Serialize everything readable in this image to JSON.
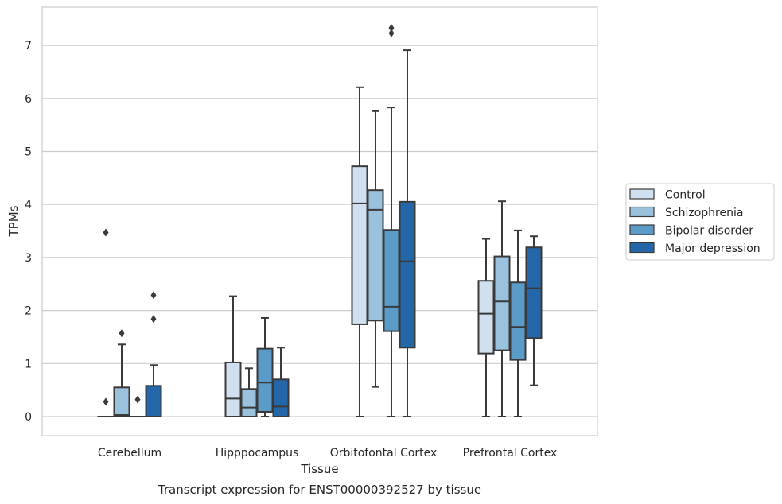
{
  "chart_data": {
    "type": "box",
    "title": "",
    "caption": "Transcript expression for ENST00000392527 by tissue",
    "xlabel": "Tissue",
    "ylabel": "TPMs",
    "ylim": [
      -0.35,
      7.7
    ],
    "yticks": [
      0,
      1,
      2,
      3,
      4,
      5,
      6,
      7
    ],
    "grid": "horizontal",
    "legend_position": "right",
    "categories": [
      "Cerebellum",
      "Hipppocampus",
      "Orbitofontal Cortex",
      "Prefrontal Cortex"
    ],
    "series": [
      {
        "name": "Control",
        "color": "#d0e0f0",
        "boxes": [
          {
            "whislo": 0,
            "q1": 0,
            "med": 0,
            "q3": 0,
            "whishi": 0,
            "fliers": [
              0.28,
              3.47
            ]
          },
          {
            "whislo": 0,
            "q1": 0,
            "med": 0.34,
            "q3": 1.02,
            "whishi": 2.27,
            "fliers": []
          },
          {
            "whislo": 0,
            "q1": 1.74,
            "med": 4.02,
            "q3": 4.72,
            "whishi": 6.21,
            "fliers": []
          },
          {
            "whislo": 0,
            "q1": 1.19,
            "med": 1.94,
            "q3": 2.56,
            "whishi": 3.35,
            "fliers": []
          }
        ]
      },
      {
        "name": "Schizophrenia",
        "color": "#9ac2dc",
        "boxes": [
          {
            "whislo": 0,
            "q1": 0,
            "med": 0.03,
            "q3": 0.55,
            "whishi": 1.36,
            "fliers": [
              1.57
            ]
          },
          {
            "whislo": 0,
            "q1": 0,
            "med": 0.17,
            "q3": 0.52,
            "whishi": 0.91,
            "fliers": []
          },
          {
            "whislo": 0.56,
            "q1": 1.81,
            "med": 3.9,
            "q3": 4.27,
            "whishi": 5.76,
            "fliers": []
          },
          {
            "whislo": 0,
            "q1": 1.25,
            "med": 2.17,
            "q3": 3.02,
            "whishi": 4.06,
            "fliers": []
          }
        ]
      },
      {
        "name": "Bipolar disorder",
        "color": "#5a9bc8",
        "boxes": [
          {
            "whislo": 0,
            "q1": 0,
            "med": 0,
            "q3": 0,
            "whishi": 0,
            "fliers": [
              0.32
            ]
          },
          {
            "whislo": 0,
            "q1": 0.09,
            "med": 0.64,
            "q3": 1.28,
            "whishi": 1.86,
            "fliers": []
          },
          {
            "whislo": 0,
            "q1": 1.61,
            "med": 2.07,
            "q3": 3.52,
            "whishi": 5.83,
            "fliers": [
              7.23,
              7.33
            ]
          },
          {
            "whislo": 0,
            "q1": 1.07,
            "med": 1.69,
            "q3": 2.53,
            "whishi": 3.51,
            "fliers": []
          }
        ]
      },
      {
        "name": "Major depression",
        "color": "#2467a8",
        "boxes": [
          {
            "whislo": 0,
            "q1": 0,
            "med": 0,
            "q3": 0.58,
            "whishi": 0.97,
            "fliers": [
              1.84,
              2.29
            ]
          },
          {
            "whislo": 0,
            "q1": 0,
            "med": 0.19,
            "q3": 0.7,
            "whishi": 1.3,
            "fliers": []
          },
          {
            "whislo": 0,
            "q1": 1.3,
            "med": 2.93,
            "q3": 4.05,
            "whishi": 6.91,
            "fliers": []
          },
          {
            "whislo": 0.59,
            "q1": 1.48,
            "med": 2.42,
            "q3": 3.19,
            "whishi": 3.4,
            "fliers": []
          }
        ]
      }
    ]
  }
}
